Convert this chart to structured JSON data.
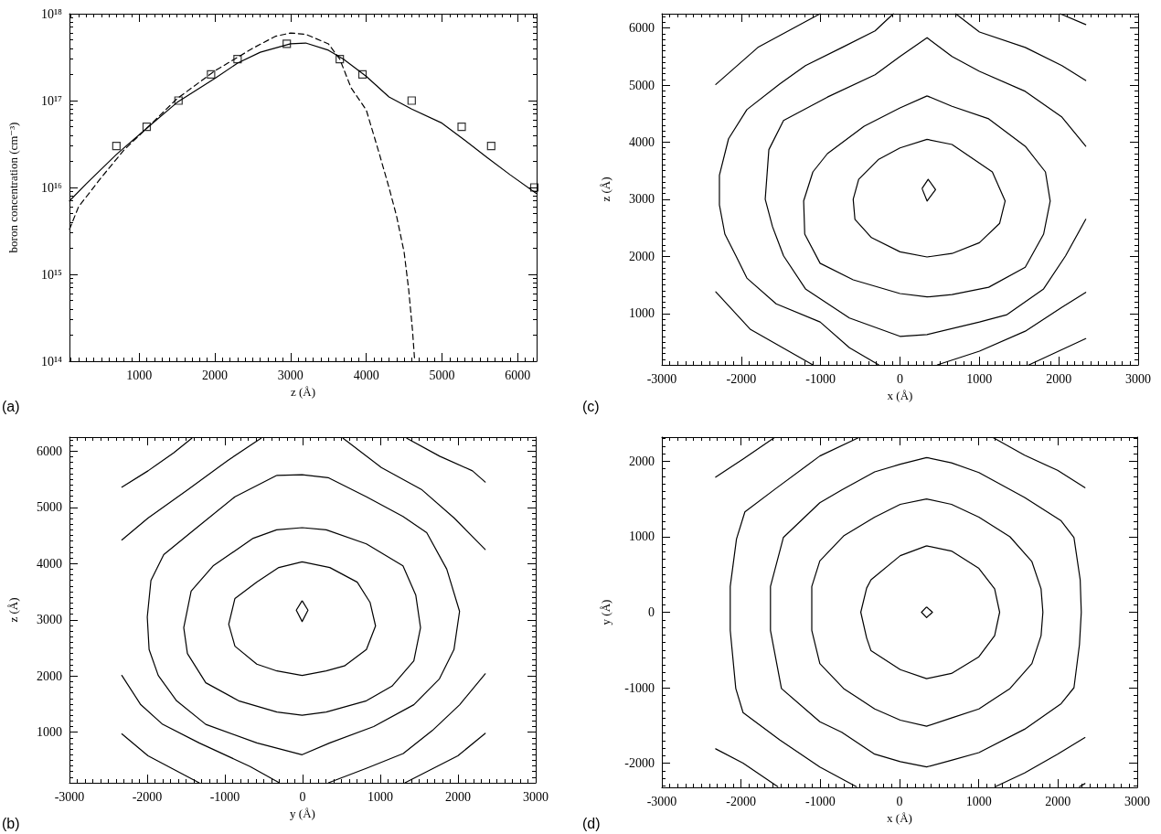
{
  "chart_data": [
    {
      "type": "line",
      "log": true,
      "xlabel": "z (Å)",
      "ylabel": "boron concentration (cm⁻³)",
      "annotations": [
        "(a)"
      ],
      "xlim": [
        80,
        6250
      ],
      "xticks": [
        1000,
        2000,
        3000,
        4000,
        5000,
        6000
      ],
      "ylim": [
        100000000000000.0,
        1e+18
      ],
      "yticks": [
        {
          "value": 100000000000000.0,
          "label": "10¹⁴"
        },
        {
          "value": 1000000000000000.0,
          "label": "10¹⁵"
        },
        {
          "value": 1e+16,
          "label": "10¹⁶"
        },
        {
          "value": 1e+17,
          "label": "10¹⁷"
        },
        {
          "value": 1e+18,
          "label": "10¹⁸"
        }
      ],
      "series": [
        {
          "line_style": "solid",
          "color": "#000000",
          "x": [
            80,
            300,
            700,
            1100,
            1500,
            2000,
            2300,
            2600,
            3000,
            3200,
            3500,
            3700,
            4000,
            4300,
            4600,
            5000,
            5300,
            5600,
            5900,
            6250
          ],
          "values": [
            7000000000000000.0,
            1.1e+16,
            2.4e+16,
            4.8e+16,
            9.5e+16,
            1.8e+17,
            2.7e+17,
            3.6e+17,
            4.5e+17,
            4.6e+17,
            3.8e+17,
            3e+17,
            1.9e+17,
            1.1e+17,
            8e+16,
            5.5e+16,
            3.5e+16,
            2.2e+16,
            1.4e+16,
            8500000000000000.0
          ]
        },
        {
          "line_style": "dashed",
          "color": "#000000",
          "x": [
            80,
            200,
            500,
            800,
            1100,
            1500,
            2000,
            2500,
            2800,
            3000,
            3200,
            3500,
            3650,
            3800,
            4000,
            4175,
            4300,
            4400,
            4500,
            4560,
            4610,
            4640
          ],
          "values": [
            3300000000000000.0,
            6000000000000000.0,
            1.3e+16,
            2.7e+16,
            4.8e+16,
            1.05e+17,
            2.2e+17,
            4e+17,
            5.5e+17,
            6e+17,
            5.8e+17,
            4.5e+17,
            3e+17,
            1.4e+17,
            7.8e+16,
            2.4e+16,
            1e+16,
            4700000000000000.0,
            1800000000000000.0,
            670000000000000.0,
            230000000000000.0,
            100000000000000.0
          ]
        },
        {
          "type": "scatter",
          "marker": "square",
          "color": "#000000",
          "x": [
            700,
            1100,
            1520,
            1950,
            2300,
            2950,
            3650,
            3950,
            4600,
            5260,
            5650,
            6220
          ],
          "values": [
            3e+16,
            5e+16,
            1e+17,
            2e+17,
            3e+17,
            4.5e+17,
            3e+17,
            2e+17,
            1e+17,
            5e+16,
            3e+16,
            1e+16
          ]
        }
      ]
    },
    {
      "type": "line",
      "xlabel": "x (Å)",
      "ylabel": "z (Å)",
      "annotations": [
        "(c)"
      ],
      "xlim": [
        -3000,
        3000
      ],
      "xticks": [
        -3000,
        -2000,
        -1000,
        0,
        1000,
        2000,
        3000
      ],
      "ylim": [
        100,
        6250
      ],
      "yticks": [
        1000,
        2000,
        3000,
        4000,
        5000,
        6000
      ],
      "series": [
        {
          "color": "#000000",
          "x": [
            2340,
            2040,
            1578,
            1001,
            655,
            341,
            0,
            -314,
            -914,
            -1467,
            -1652,
            -1698,
            -1606,
            -1467,
            -1191,
            -637,
            0,
            341,
            1001,
            1348,
            1809,
            2086,
            2340
          ],
          "values": [
            3930,
            4440,
            4890,
            5240,
            5500,
            5830,
            5500,
            5180,
            4790,
            4380,
            3870,
            3000,
            2520,
            2010,
            1430,
            920,
            600,
            630,
            850,
            980,
            1430,
            2010,
            2650
          ]
        },
        {
          "color": "#000000",
          "x": [
            -83,
            -314,
            -729,
            -1191,
            -1514,
            -1929,
            -2160,
            -2275,
            -2275,
            -2206,
            -2067,
            -1929,
            -1560,
            -1006,
            -637,
            -268
          ],
          "values": [
            6250,
            5950,
            5660,
            5340,
            5020,
            4570,
            4060,
            3420,
            2900,
            2390,
            2010,
            1620,
            1170,
            850,
            400,
            100
          ]
        },
        {
          "color": "#000000",
          "x": [
            471,
            1001,
            1578,
            2040,
            2340
          ],
          "values": [
            100,
            340,
            690,
            1110,
            1370
          ]
        },
        {
          "color": "#000000",
          "x": [
            701,
            1001,
            1578,
            2040,
            2340
          ],
          "values": [
            6250,
            5930,
            5660,
            5340,
            5080
          ]
        },
        {
          "color": "#000000",
          "x": [
            -2321,
            -1790,
            -1006
          ],
          "values": [
            5010,
            5660,
            6250
          ]
        },
        {
          "color": "#000000",
          "x": [
            2017,
            2340
          ],
          "values": [
            6250,
            6060
          ]
        },
        {
          "color": "#000000",
          "x": [
            -2321,
            -1883,
            -1098
          ],
          "values": [
            1380,
            720,
            100
          ]
        },
        {
          "color": "#000000",
          "x": [
            1625,
            2340
          ],
          "values": [
            100,
            560
          ]
        }
      ]
    },
    {
      "type": "line",
      "xlabel": "y (Å)",
      "ylabel": "z (Å)",
      "annotations": [
        "(b)"
      ],
      "xlim": [
        -3000,
        3000
      ],
      "xticks": [
        -3000,
        -2000,
        -1000,
        0,
        1000,
        2000,
        3000
      ],
      "ylim": [
        100,
        6250
      ],
      "yticks": [
        1000,
        2000,
        3000,
        4000,
        5000,
        6000
      ],
      "series": [
        {
          "color": "#000000",
          "x": [
            -2326,
            -1989,
            -1473,
            -957,
            -535
          ],
          "values": [
            4420,
            4810,
            5320,
            5840,
            6230
          ]
        },
        {
          "color": "#000000",
          "x": [
            521,
            1013,
            1529,
            1951,
            2350
          ],
          "values": [
            6230,
            5710,
            5320,
            4810,
            4250
          ]
        },
        {
          "color": "#000000",
          "x": [
            -2326,
            -2083,
            -1801,
            -1332,
            -675,
            -300
          ],
          "values": [
            2010,
            1490,
            1140,
            810,
            390,
            100
          ]
        },
        {
          "color": "#000000",
          "x": [
            333,
            826,
            1295,
            1670,
            2022,
            2350
          ],
          "values": [
            100,
            360,
            620,
            1030,
            1490,
            2040
          ]
        },
        {
          "color": "#000000",
          "x": [
            -2326,
            -1989,
            -1660,
            -1426
          ],
          "values": [
            5360,
            5650,
            5970,
            6230
          ]
        },
        {
          "color": "#000000",
          "x": [
            1341,
            1764,
            2186,
            2350
          ],
          "values": [
            6230,
            5910,
            5650,
            5450
          ]
        },
        {
          "color": "#000000",
          "x": [
            -2326,
            -1989,
            -1332
          ],
          "values": [
            970,
            580,
            100
          ]
        },
        {
          "color": "#000000",
          "x": [
            1318,
            1998,
            2350
          ],
          "values": [
            100,
            580,
            980
          ]
        }
      ]
    },
    {
      "type": "line",
      "xlabel": "x (Å)",
      "ylabel": "y (Å)",
      "annotations": [
        "(d)"
      ],
      "xlim": [
        -3000,
        3000
      ],
      "xticks": [
        -3000,
        -2000,
        -1000,
        0,
        1000,
        2000,
        3000
      ],
      "ylim": [
        -2320,
        2320
      ],
      "yticks": [
        -2000,
        -1000,
        0,
        1000,
        2000
      ],
      "series": [
        {
          "color": "#000000",
          "x": [
            -521,
            -1006,
            -1560,
            -1952,
            -2058,
            -2137,
            -2137,
            -2067,
            -1975,
            -1514,
            -1006,
            -545
          ],
          "values": [
            2310,
            2070,
            1640,
            1330,
            970,
            340,
            -240,
            -1010,
            -1330,
            -1690,
            -2050,
            -2310
          ]
        },
        {
          "color": "#000000",
          "x": [
            1186,
            1578,
            1994,
            2340
          ],
          "values": [
            2310,
            2080,
            1880,
            1650
          ]
        },
        {
          "color": "#000000",
          "x": [
            1209,
            1578,
            1994,
            2340
          ],
          "values": [
            -2310,
            -2130,
            -1880,
            -1660
          ]
        },
        {
          "color": "#000000",
          "x": [
            -2321,
            -1975,
            -1583
          ],
          "values": [
            1790,
            2030,
            2310
          ]
        },
        {
          "color": "#000000",
          "x": [
            -2321,
            -1975,
            -1537
          ],
          "values": [
            -1810,
            -2000,
            -2310
          ]
        },
        {
          "color": "#000000",
          "x": [
            2271,
            2340
          ],
          "values": [
            -2310,
            -2270
          ]
        }
      ]
    }
  ]
}
